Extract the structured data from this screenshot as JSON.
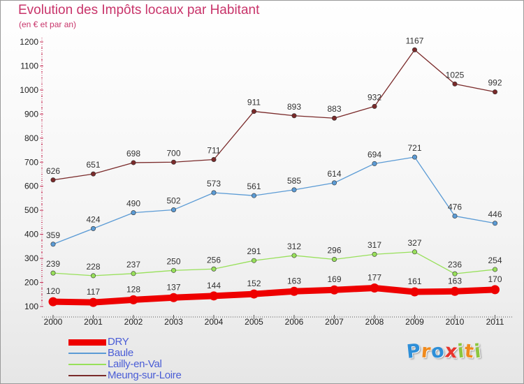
{
  "header": {
    "title": "Evolution des Impôts locaux par Habitant",
    "subtitle": "(en € et par an)"
  },
  "logo": {
    "letters": [
      {
        "ch": "P",
        "color": "#2e8fd8"
      },
      {
        "ch": "r",
        "color": "#f08a1c"
      },
      {
        "ch": "o",
        "color": "#2e8fd8"
      },
      {
        "ch": "x",
        "color": "#e8342c"
      },
      {
        "ch": "i",
        "color": "#8cc63f"
      },
      {
        "ch": "t",
        "color": "#f08a1c"
      },
      {
        "ch": "i",
        "color": "#8cc63f"
      }
    ]
  },
  "chart_data": {
    "type": "line",
    "title": "Evolution des Impôts locaux par Habitant",
    "subtitle": "(en € et par an)",
    "xlabel": "",
    "ylabel": "",
    "x": [
      "2000",
      "2001",
      "2002",
      "2003",
      "2004",
      "2005",
      "2006",
      "2007",
      "2008",
      "2009",
      "2010",
      "2011"
    ],
    "ylim": [
      100,
      1200
    ],
    "yticks": [
      100,
      200,
      300,
      400,
      500,
      600,
      700,
      800,
      900,
      1000,
      1100,
      1200
    ],
    "grid": false,
    "legend_position": "bottom-left",
    "series": [
      {
        "name": "DRY",
        "color": "#ee0000",
        "thick": true,
        "values": [
          120,
          117,
          128,
          137,
          144,
          152,
          163,
          169,
          177,
          161,
          163,
          170
        ]
      },
      {
        "name": "Baule",
        "color": "#5b9bd5",
        "thick": false,
        "values": [
          359,
          424,
          490,
          502,
          573,
          561,
          585,
          614,
          694,
          721,
          476,
          446
        ]
      },
      {
        "name": "Lailly-en-Val",
        "color": "#98e05a",
        "thick": false,
        "values": [
          239,
          228,
          237,
          250,
          256,
          291,
          312,
          296,
          317,
          327,
          236,
          254
        ]
      },
      {
        "name": "Meung-sur-Loire",
        "color": "#7a2a2a",
        "thick": false,
        "values": [
          626,
          651,
          698,
          700,
          711,
          911,
          893,
          883,
          932,
          1167,
          1025,
          992
        ]
      }
    ]
  }
}
